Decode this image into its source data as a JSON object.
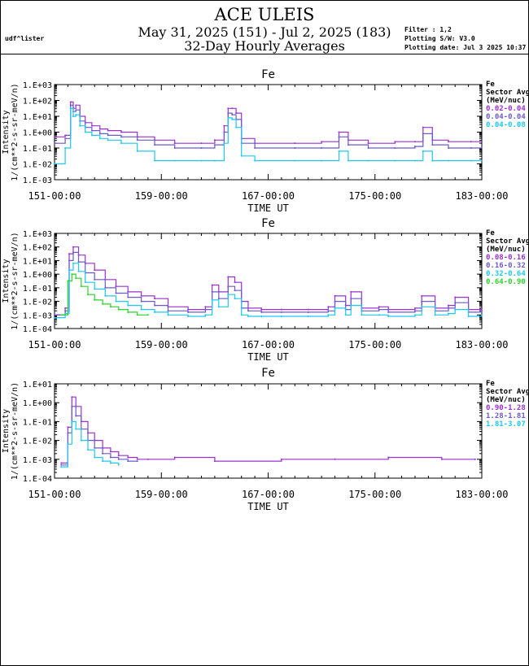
{
  "header": {
    "title": "ACE ULEIS",
    "subtitle": "May 31, 2025 (151) - Jul  2, 2025 (183)",
    "subtitle2": "32-Day Hourly Averages",
    "user": "udf^lister",
    "filter": "Filter : 1,2",
    "software": "Plotting S/W: V3.0",
    "plot_date": "Plotting date: Jul  3 2025 10:37"
  },
  "chart_data": [
    {
      "type": "line",
      "title": "Fe",
      "xlabel": "TIME UT",
      "ylabel": [
        "Intensity",
        "1/(cm**2-s-sr-meV/n)"
      ],
      "xlim": [
        151,
        183
      ],
      "ylim_log10": [
        -3,
        3
      ],
      "yscale": "log",
      "x_ticks": [
        151,
        159,
        167,
        175,
        183
      ],
      "x_tick_labels": [
        "151-00:00",
        "159-00:00",
        "167-00:00",
        "175-00:00",
        "183-00:00"
      ],
      "y_ticks_log10": [
        3,
        2,
        1,
        0,
        -1,
        -2,
        -3
      ],
      "y_tick_labels": [
        "1.E+03",
        "1.E+02",
        "1.E+01",
        "1.E+00",
        "1.E-01",
        "1.E-02",
        "1.E-03"
      ],
      "legend": {
        "title": [
          "Fe",
          "Sector Avg",
          "(MeV/nuc)"
        ],
        "position": "right"
      },
      "series": [
        {
          "name": "0.02-0.04",
          "color": "#9b30d0",
          "x": [
            151.0,
            151.8,
            152.2,
            152.4,
            152.6,
            152.9,
            153.3,
            153.8,
            154.4,
            155.0,
            156.0,
            157.2,
            158.5,
            160.0,
            162.0,
            163.0,
            163.7,
            164.0,
            164.3,
            164.6,
            165.0,
            166.0,
            169.0,
            171.0,
            172.3,
            173.0,
            174.5,
            176.5,
            178.0,
            178.6,
            179.3,
            180.5,
            182.2,
            183.0
          ],
          "y_log10": [
            -0.3,
            -0.2,
            1.9,
            1.5,
            1.7,
            1.0,
            0.6,
            0.4,
            0.2,
            0.1,
            0.0,
            -0.3,
            -0.5,
            -0.7,
            -0.7,
            -0.5,
            0.4,
            1.5,
            1.5,
            1.2,
            -0.4,
            -0.7,
            -0.7,
            -0.6,
            0.0,
            -0.5,
            -0.7,
            -0.6,
            -0.6,
            0.3,
            -0.5,
            -0.6,
            -0.6,
            -0.6
          ]
        },
        {
          "name": "0.04-0.04",
          "color": "#6a5acd",
          "x": [
            151.0,
            151.8,
            152.2,
            152.4,
            152.6,
            152.9,
            153.3,
            153.8,
            154.4,
            155.0,
            156.0,
            157.2,
            158.5,
            160.0,
            162.0,
            163.0,
            163.7,
            164.0,
            164.3,
            164.6,
            165.0,
            166.0,
            169.0,
            171.0,
            172.3,
            173.0,
            174.5,
            176.5,
            178.0,
            178.6,
            179.3,
            180.5,
            182.2,
            183.0
          ],
          "y_log10": [
            -0.7,
            -0.4,
            1.7,
            1.3,
            1.4,
            0.7,
            0.3,
            0.1,
            -0.1,
            -0.2,
            -0.3,
            -0.5,
            -0.8,
            -1.0,
            -1.0,
            -0.8,
            0.0,
            1.2,
            1.1,
            0.8,
            -0.7,
            -1.0,
            -1.0,
            -1.0,
            -0.3,
            -0.8,
            -1.0,
            -1.0,
            -0.9,
            -0.1,
            -0.8,
            -1.0,
            -1.0,
            -0.9
          ]
        },
        {
          "name": "0.04-0.08",
          "color": "#1ec8f0",
          "x": [
            151.0,
            151.8,
            152.2,
            152.4,
            152.6,
            152.9,
            153.3,
            153.8,
            154.4,
            155.0,
            156.0,
            157.2,
            158.5,
            160.0,
            162.0,
            163.0,
            163.7,
            164.0,
            164.3,
            164.6,
            165.0,
            166.0,
            169.0,
            171.0,
            172.3,
            173.0,
            174.5,
            176.5,
            178.0,
            178.6,
            179.3,
            180.5,
            182.2,
            183.0
          ],
          "y_log10": [
            -2.0,
            -1.0,
            1.5,
            1.0,
            1.1,
            0.4,
            0.0,
            -0.2,
            -0.4,
            -0.5,
            -0.7,
            -1.2,
            -1.8,
            -1.8,
            -1.8,
            -1.8,
            -0.7,
            0.9,
            0.8,
            0.3,
            -1.5,
            -1.8,
            -1.8,
            -1.8,
            -1.2,
            -1.8,
            -1.8,
            -1.8,
            -1.8,
            -1.2,
            -1.8,
            -1.8,
            -1.8,
            -1.8
          ]
        }
      ]
    },
    {
      "type": "line",
      "title": "Fe",
      "xlabel": "TIME UT",
      "ylabel": [
        "Intensity",
        "1/(cm**2-s-sr-meV/n)"
      ],
      "xlim": [
        151,
        183
      ],
      "ylim_log10": [
        -4,
        3
      ],
      "yscale": "log",
      "x_ticks": [
        151,
        159,
        167,
        175,
        183
      ],
      "x_tick_labels": [
        "151-00:00",
        "159-00:00",
        "167-00:00",
        "175-00:00",
        "183-00:00"
      ],
      "y_ticks_log10": [
        3,
        2,
        1,
        0,
        -1,
        -2,
        -3,
        -4
      ],
      "y_tick_labels": [
        "1.E+03",
        "1.E+02",
        "1.E+01",
        "1.E+00",
        "1.E-01",
        "1.E-02",
        "1.E-03",
        "1.E-04"
      ],
      "legend": {
        "title": [
          "Fe",
          "Sector Avg",
          "(MeV/nuc)"
        ],
        "position": "right"
      },
      "series": [
        {
          "name": "0.08-0.16",
          "color": "#9b30d0",
          "x": [
            151.0,
            151.8,
            152.1,
            152.4,
            152.8,
            153.3,
            154.0,
            154.8,
            155.6,
            156.5,
            157.5,
            158.5,
            159.5,
            161.0,
            162.3,
            162.8,
            163.3,
            164.0,
            164.5,
            165.0,
            165.5,
            166.5,
            168.0,
            170.0,
            171.5,
            172.0,
            172.8,
            173.2,
            174.0,
            175.3,
            176.0,
            178.0,
            178.5,
            179.5,
            180.5,
            181.0,
            182.0,
            183.0
          ],
          "y_log10": [
            -3.0,
            -2.5,
            1.5,
            2.0,
            1.4,
            0.8,
            0.3,
            -0.4,
            -0.9,
            -1.3,
            -1.6,
            -1.8,
            -2.4,
            -2.6,
            -2.4,
            -0.8,
            -1.3,
            -0.2,
            -0.6,
            -2.0,
            -2.5,
            -2.6,
            -2.6,
            -2.6,
            -2.4,
            -1.6,
            -2.3,
            -1.3,
            -2.5,
            -2.4,
            -2.6,
            -2.5,
            -1.6,
            -2.5,
            -2.3,
            -1.7,
            -2.6,
            -2.5
          ]
        },
        {
          "name": "0.16-0.32",
          "color": "#6a5acd",
          "x": [
            151.0,
            151.8,
            152.1,
            152.4,
            152.8,
            153.3,
            154.0,
            154.8,
            155.6,
            156.5,
            157.5,
            158.5,
            159.5,
            161.0,
            162.3,
            162.8,
            163.3,
            164.0,
            164.5,
            165.0,
            165.5,
            166.5,
            168.0,
            170.0,
            171.5,
            172.0,
            172.8,
            173.2,
            174.0,
            175.3,
            176.0,
            178.0,
            178.5,
            179.5,
            180.5,
            181.0,
            182.0,
            183.0
          ],
          "y_log10": [
            -3.0,
            -2.7,
            1.0,
            1.6,
            0.9,
            0.1,
            -0.4,
            -1.0,
            -1.4,
            -1.7,
            -2.0,
            -2.3,
            -2.7,
            -2.8,
            -2.6,
            -1.3,
            -1.8,
            -0.9,
            -1.2,
            -2.5,
            -2.7,
            -2.8,
            -2.8,
            -2.8,
            -2.7,
            -2.0,
            -2.6,
            -1.8,
            -2.7,
            -2.6,
            -2.8,
            -2.7,
            -2.0,
            -2.7,
            -2.5,
            -2.1,
            -2.8,
            -2.7
          ]
        },
        {
          "name": "0.32-0.64",
          "color": "#1ec8f0",
          "x": [
            151.0,
            151.8,
            152.1,
            152.4,
            152.8,
            153.3,
            154.0,
            154.8,
            155.6,
            156.5,
            157.5,
            158.5,
            159.5,
            161.0,
            162.3,
            162.8,
            163.3,
            164.0,
            164.5,
            165.0,
            165.5,
            166.5,
            168.0,
            170.0,
            171.5,
            172.0,
            172.8,
            173.2,
            174.0,
            175.3,
            176.0,
            178.0,
            178.5,
            179.5,
            180.5,
            181.0,
            182.0,
            183.0
          ],
          "y_log10": [
            -3.2,
            -2.9,
            0.3,
            0.8,
            0.2,
            -0.6,
            -1.1,
            -1.6,
            -2.0,
            -2.3,
            -2.6,
            -2.8,
            -3.0,
            -3.1,
            -3.0,
            -1.9,
            -2.4,
            -1.5,
            -1.8,
            -3.0,
            -3.1,
            -3.1,
            -3.1,
            -3.1,
            -3.0,
            -2.5,
            -3.0,
            -2.3,
            -3.0,
            -3.0,
            -3.1,
            -3.0,
            -2.4,
            -3.0,
            -2.9,
            -2.6,
            -3.1,
            -3.0
          ]
        },
        {
          "name": "0.64-0.90",
          "color": "#2ad42a",
          "x": [
            151.5,
            152.0,
            152.3,
            152.6,
            153.0,
            153.5,
            154.0,
            154.6,
            155.2,
            155.8,
            156.5,
            157.2,
            158.0
          ],
          "y_log10": [
            -3.0,
            -0.5,
            0.0,
            -0.3,
            -0.9,
            -1.5,
            -1.9,
            -2.2,
            -2.4,
            -2.6,
            -2.8,
            -3.0,
            -3.0
          ]
        }
      ]
    },
    {
      "type": "line",
      "title": "Fe",
      "xlabel": "TIME UT",
      "ylabel": [
        "Intensity",
        "1/(cm**2-s-sr-meV/n)"
      ],
      "xlim": [
        151,
        183
      ],
      "ylim_log10": [
        -4,
        1
      ],
      "yscale": "log",
      "x_ticks": [
        151,
        159,
        167,
        175,
        183
      ],
      "x_tick_labels": [
        "151-00:00",
        "159-00:00",
        "167-00:00",
        "175-00:00",
        "183-00:00"
      ],
      "y_ticks_log10": [
        1,
        0,
        -1,
        -2,
        -3,
        -4
      ],
      "y_tick_labels": [
        "1.E+01",
        "1.E+00",
        "1.E-01",
        "1.E-02",
        "1.E-03",
        "1.E-04"
      ],
      "legend": {
        "title": [
          "Fe",
          "Sector Avg",
          "(MeV/nuc)"
        ],
        "position": "right"
      },
      "series": [
        {
          "name": "0.90-1.28",
          "color": "#9b30d0",
          "x": [
            151.5,
            152.0,
            152.3,
            152.6,
            153.0,
            153.5,
            154.0,
            154.6,
            155.2,
            155.8,
            156.5,
            157.2,
            158.0,
            160.0,
            163.0,
            168.0,
            172.0,
            176.0,
            180.0,
            182.5
          ],
          "y_log10": [
            -3.2,
            -1.3,
            0.3,
            -0.2,
            -1.0,
            -1.6,
            -2.0,
            -2.4,
            -2.6,
            -2.8,
            -2.9,
            -3.0,
            -3.0,
            -2.9,
            -3.1,
            -3.0,
            -3.0,
            -2.9,
            -3.0,
            -3.0
          ]
        },
        {
          "name": "1.28-1.81",
          "color": "#6a5acd",
          "x": [
            151.5,
            152.0,
            152.3,
            152.6,
            153.0,
            153.5,
            154.0,
            154.6,
            155.2,
            155.8,
            156.5,
            157.2
          ],
          "y_log10": [
            -3.3,
            -1.6,
            -0.2,
            -0.7,
            -1.4,
            -2.0,
            -2.4,
            -2.7,
            -2.9,
            -3.0,
            -3.1,
            -3.1
          ]
        },
        {
          "name": "1.81-3.07",
          "color": "#1ec8f0",
          "x": [
            151.5,
            152.0,
            152.3,
            152.6,
            153.0,
            153.5,
            154.0,
            154.6,
            155.2,
            155.8
          ],
          "y_log10": [
            -3.4,
            -2.2,
            -1.0,
            -1.4,
            -2.0,
            -2.5,
            -2.9,
            -3.1,
            -3.2,
            -3.3
          ]
        }
      ]
    }
  ]
}
